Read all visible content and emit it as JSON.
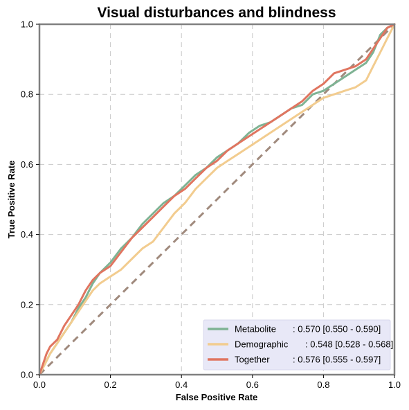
{
  "chart_data": {
    "type": "line",
    "title": "Visual disturbances and blindness",
    "xlabel": "False Positive Rate",
    "ylabel": "True Positive Rate",
    "xlim": [
      0,
      1
    ],
    "ylim": [
      0,
      1
    ],
    "xticks": [
      "0.0",
      "0.2",
      "0.4",
      "0.6",
      "0.8",
      "1.0"
    ],
    "yticks": [
      "0.0",
      "0.2",
      "0.4",
      "0.6",
      "0.8",
      "1.0"
    ],
    "grid": true,
    "legend_position": "bottom-right",
    "diagonal": {
      "x": [
        0,
        1
      ],
      "y": [
        0,
        1
      ],
      "color": "#a08a7d",
      "style": "dashed"
    },
    "series": [
      {
        "name": "Metabolite",
        "legend_value": ": 0.570 [0.550 - 0.590]",
        "color": "#7fb394",
        "x": [
          0,
          0.01,
          0.02,
          0.03,
          0.05,
          0.07,
          0.09,
          0.11,
          0.13,
          0.15,
          0.17,
          0.2,
          0.23,
          0.26,
          0.29,
          0.32,
          0.35,
          0.38,
          0.41,
          0.44,
          0.47,
          0.5,
          0.53,
          0.56,
          0.59,
          0.62,
          0.65,
          0.68,
          0.71,
          0.74,
          0.77,
          0.8,
          0.83,
          0.86,
          0.89,
          0.92,
          0.94,
          0.96,
          0.98,
          1.0
        ],
        "y": [
          0,
          0.02,
          0.04,
          0.06,
          0.09,
          0.12,
          0.15,
          0.19,
          0.22,
          0.26,
          0.29,
          0.32,
          0.36,
          0.39,
          0.43,
          0.46,
          0.49,
          0.51,
          0.54,
          0.57,
          0.59,
          0.62,
          0.64,
          0.66,
          0.69,
          0.71,
          0.72,
          0.74,
          0.76,
          0.77,
          0.8,
          0.81,
          0.83,
          0.85,
          0.87,
          0.89,
          0.92,
          0.97,
          0.99,
          1.0
        ]
      },
      {
        "name": "Demographic",
        "legend_value": ": 0.548 [0.528 - 0.568]",
        "color": "#f2cc8f",
        "x": [
          0,
          0.01,
          0.02,
          0.03,
          0.05,
          0.07,
          0.09,
          0.11,
          0.13,
          0.15,
          0.17,
          0.2,
          0.23,
          0.26,
          0.29,
          0.32,
          0.35,
          0.38,
          0.41,
          0.44,
          0.47,
          0.5,
          0.53,
          0.56,
          0.59,
          0.62,
          0.65,
          0.68,
          0.71,
          0.74,
          0.77,
          0.8,
          0.83,
          0.86,
          0.89,
          0.92,
          0.94,
          0.96,
          0.98,
          1.0
        ],
        "y": [
          0,
          0.02,
          0.04,
          0.06,
          0.09,
          0.12,
          0.15,
          0.18,
          0.21,
          0.24,
          0.26,
          0.28,
          0.3,
          0.33,
          0.36,
          0.38,
          0.42,
          0.46,
          0.49,
          0.53,
          0.56,
          0.59,
          0.61,
          0.63,
          0.65,
          0.67,
          0.69,
          0.71,
          0.73,
          0.75,
          0.77,
          0.79,
          0.8,
          0.81,
          0.82,
          0.84,
          0.88,
          0.92,
          0.96,
          1.0
        ]
      },
      {
        "name": "Together",
        "legend_value": ": 0.576 [0.555 - 0.597]",
        "color": "#e07560",
        "x": [
          0,
          0.01,
          0.02,
          0.03,
          0.05,
          0.07,
          0.09,
          0.11,
          0.13,
          0.15,
          0.17,
          0.2,
          0.23,
          0.26,
          0.29,
          0.32,
          0.35,
          0.38,
          0.41,
          0.44,
          0.47,
          0.5,
          0.53,
          0.56,
          0.59,
          0.62,
          0.65,
          0.68,
          0.71,
          0.74,
          0.77,
          0.8,
          0.83,
          0.86,
          0.89,
          0.92,
          0.94,
          0.96,
          0.98,
          1.0
        ],
        "y": [
          0,
          0.03,
          0.06,
          0.08,
          0.1,
          0.14,
          0.17,
          0.2,
          0.24,
          0.27,
          0.29,
          0.31,
          0.35,
          0.39,
          0.42,
          0.45,
          0.48,
          0.51,
          0.53,
          0.56,
          0.59,
          0.61,
          0.64,
          0.66,
          0.68,
          0.7,
          0.72,
          0.74,
          0.76,
          0.78,
          0.81,
          0.83,
          0.86,
          0.87,
          0.88,
          0.9,
          0.93,
          0.96,
          0.99,
          1.0
        ]
      }
    ]
  }
}
